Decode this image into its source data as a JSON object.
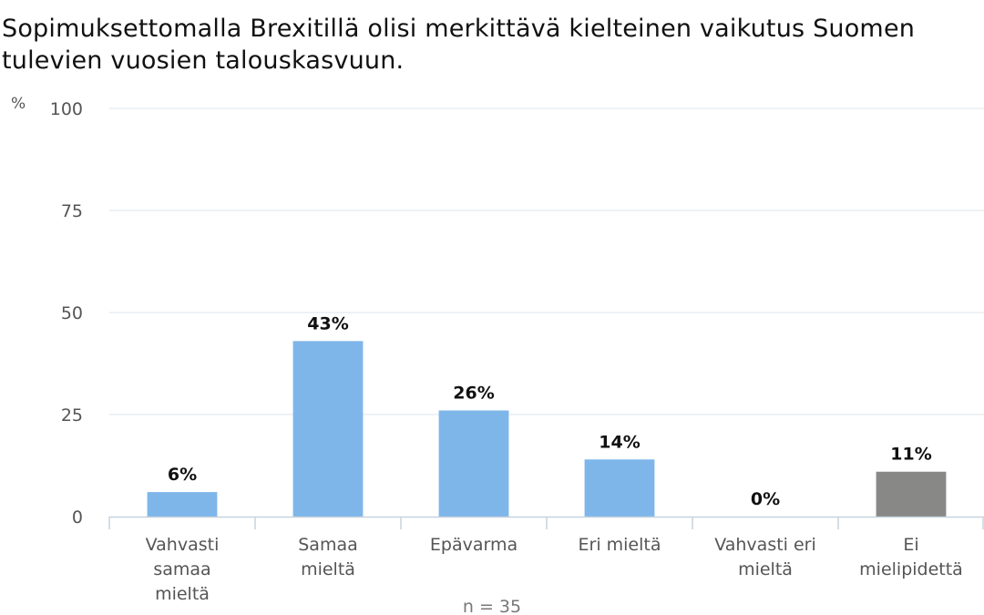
{
  "chart_data": {
    "type": "bar",
    "title": "Sopimuksettomalla Brexitillä olisi merkittävä kielteinen vaikutus Suomen tulevien vuosien talouskasvuun.",
    "ylabel": "%",
    "ylim": [
      0,
      100
    ],
    "yticks": [
      0,
      25,
      50,
      75,
      100
    ],
    "grid": true,
    "categories": [
      [
        "Vahvasti",
        "samaa",
        "mieltä"
      ],
      [
        "Samaa",
        "mieltä"
      ],
      [
        "Epävarma"
      ],
      [
        "Eri mieltä"
      ],
      [
        "Vahvasti eri",
        "mieltä"
      ],
      [
        "Ei",
        "mielipidettä"
      ]
    ],
    "values": [
      6,
      43,
      26,
      14,
      0,
      11
    ],
    "data_labels": [
      "6%",
      "43%",
      "26%",
      "14%",
      "0%",
      "11%"
    ],
    "colors": [
      "#7eb6ea",
      "#7eb6ea",
      "#7eb6ea",
      "#7eb6ea",
      "#7eb6ea",
      "#888886"
    ],
    "note": "n = 35"
  }
}
